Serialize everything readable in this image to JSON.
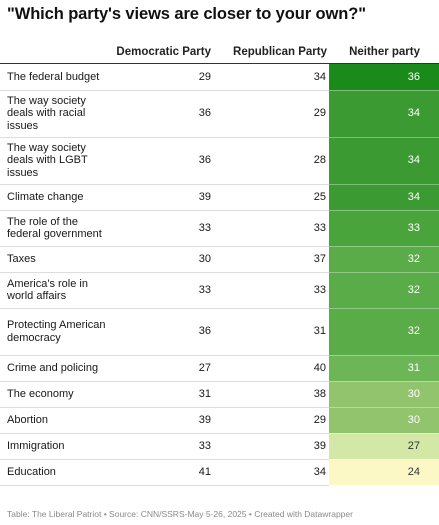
{
  "chart_data": {
    "type": "table",
    "title": "\"Which party's views are closer to your own?\"",
    "columns": [
      "Democratic Party",
      "Republican Party",
      "Neither party"
    ],
    "rows": [
      {
        "label": "The federal budget",
        "values": [
          29,
          34,
          36
        ],
        "color": "#1a8a1a"
      },
      {
        "label": "The way society deals with racial issues",
        "values": [
          36,
          29,
          34
        ],
        "color": "#3c9a32"
      },
      {
        "label": "The way society deals with LGBT issues",
        "values": [
          36,
          28,
          34
        ],
        "color": "#3c9a32"
      },
      {
        "label": "Climate change",
        "values": [
          39,
          25,
          34
        ],
        "color": "#3c9a32"
      },
      {
        "label": "The role of the federal government",
        "values": [
          33,
          33,
          33
        ],
        "color": "#4aa43c"
      },
      {
        "label": "Taxes",
        "values": [
          30,
          37,
          32
        ],
        "color": "#5aac48"
      },
      {
        "label": "America's role in world affairs",
        "values": [
          33,
          33,
          32
        ],
        "color": "#5aac48"
      },
      {
        "label": "Protecting American democracy",
        "values": [
          36,
          31,
          32
        ],
        "color": "#5aac48"
      },
      {
        "label": "Crime and policing",
        "values": [
          27,
          40,
          31
        ],
        "color": "#6db658"
      },
      {
        "label": "The economy",
        "values": [
          31,
          38,
          30
        ],
        "color": "#92c46e"
      },
      {
        "label": "Abortion",
        "values": [
          39,
          29,
          30
        ],
        "color": "#92c46e"
      },
      {
        "label": "Immigration",
        "values": [
          33,
          39,
          27
        ],
        "color": "#d3e7a6"
      },
      {
        "label": "Education",
        "values": [
          41,
          34,
          24
        ],
        "color": "#fbf8c6"
      }
    ]
  },
  "footer": "Table: The Liberal Patriot • Source: CNN/SSRS-May 5-26, 2025 • Created with Datawrapper"
}
